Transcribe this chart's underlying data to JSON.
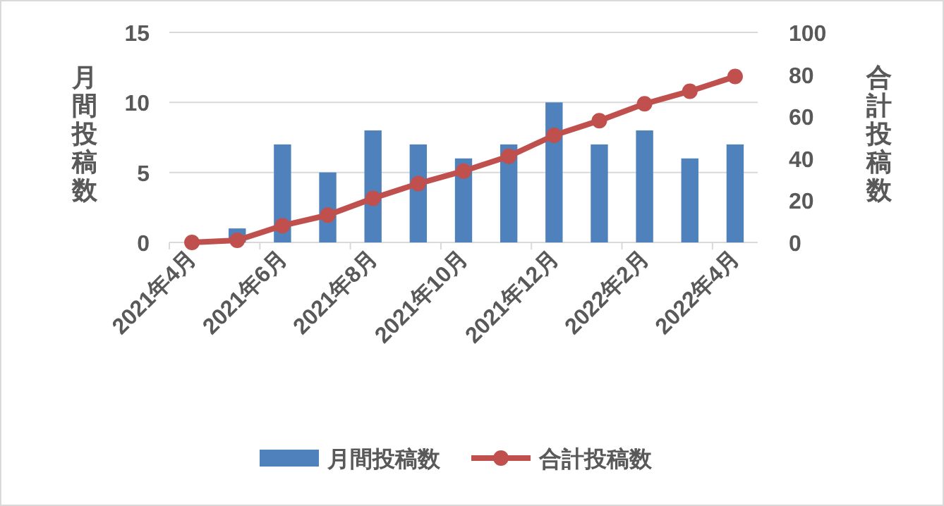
{
  "chart_data": {
    "type": "bar",
    "categories": [
      "2021年4月",
      null,
      "2021年6月",
      null,
      "2021年8月",
      null,
      "2021年10月",
      null,
      "2021年12月",
      null,
      "2022年2月",
      null,
      "2022年4月"
    ],
    "series": [
      {
        "name": "月間投稿数",
        "color": "#4f81bd",
        "values": [
          0,
          1,
          7,
          5,
          8,
          7,
          6,
          7,
          10,
          7,
          8,
          6,
          7
        ]
      },
      {
        "name": "合計投稿数",
        "type": "line",
        "axis": "y2",
        "color": "#c0504d",
        "marker": "circle",
        "values": [
          0,
          1,
          8,
          13,
          21,
          28,
          34,
          41,
          51,
          58,
          66,
          72,
          79
        ]
      }
    ],
    "ylabel": "月間投稿数",
    "y2label": "合計投稿数",
    "ylim": [
      0,
      15
    ],
    "yticks": [
      0,
      5,
      10,
      15
    ],
    "y2lim": [
      0,
      100
    ],
    "y2ticks": [
      0,
      20,
      40,
      60,
      80,
      100
    ],
    "grid": "y",
    "legend": "bottom"
  }
}
